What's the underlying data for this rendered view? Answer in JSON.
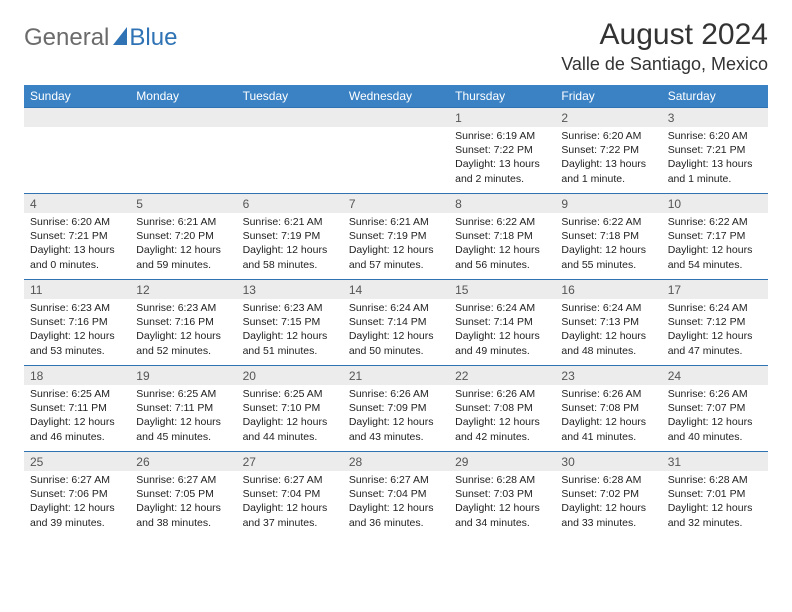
{
  "brand": {
    "part1": "General",
    "part2": "Blue"
  },
  "title": "August 2024",
  "location": "Valle de Santiago, Mexico",
  "colors": {
    "header_bg": "#3a82c4",
    "header_text": "#ffffff",
    "numrow_bg": "#ececec",
    "border": "#2f73b5",
    "text": "#222222"
  },
  "typography": {
    "body_fontsize": 10.5,
    "daynum_fontsize": 12,
    "title_fontsize": 30
  },
  "day_names": [
    "Sunday",
    "Monday",
    "Tuesday",
    "Wednesday",
    "Thursday",
    "Friday",
    "Saturday"
  ],
  "weeks": [
    [
      null,
      null,
      null,
      null,
      {
        "n": "1",
        "sr": "Sunrise: 6:19 AM",
        "ss": "Sunset: 7:22 PM",
        "dl": "Daylight: 13 hours and 2 minutes."
      },
      {
        "n": "2",
        "sr": "Sunrise: 6:20 AM",
        "ss": "Sunset: 7:22 PM",
        "dl": "Daylight: 13 hours and 1 minute."
      },
      {
        "n": "3",
        "sr": "Sunrise: 6:20 AM",
        "ss": "Sunset: 7:21 PM",
        "dl": "Daylight: 13 hours and 1 minute."
      }
    ],
    [
      {
        "n": "4",
        "sr": "Sunrise: 6:20 AM",
        "ss": "Sunset: 7:21 PM",
        "dl": "Daylight: 13 hours and 0 minutes."
      },
      {
        "n": "5",
        "sr": "Sunrise: 6:21 AM",
        "ss": "Sunset: 7:20 PM",
        "dl": "Daylight: 12 hours and 59 minutes."
      },
      {
        "n": "6",
        "sr": "Sunrise: 6:21 AM",
        "ss": "Sunset: 7:19 PM",
        "dl": "Daylight: 12 hours and 58 minutes."
      },
      {
        "n": "7",
        "sr": "Sunrise: 6:21 AM",
        "ss": "Sunset: 7:19 PM",
        "dl": "Daylight: 12 hours and 57 minutes."
      },
      {
        "n": "8",
        "sr": "Sunrise: 6:22 AM",
        "ss": "Sunset: 7:18 PM",
        "dl": "Daylight: 12 hours and 56 minutes."
      },
      {
        "n": "9",
        "sr": "Sunrise: 6:22 AM",
        "ss": "Sunset: 7:18 PM",
        "dl": "Daylight: 12 hours and 55 minutes."
      },
      {
        "n": "10",
        "sr": "Sunrise: 6:22 AM",
        "ss": "Sunset: 7:17 PM",
        "dl": "Daylight: 12 hours and 54 minutes."
      }
    ],
    [
      {
        "n": "11",
        "sr": "Sunrise: 6:23 AM",
        "ss": "Sunset: 7:16 PM",
        "dl": "Daylight: 12 hours and 53 minutes."
      },
      {
        "n": "12",
        "sr": "Sunrise: 6:23 AM",
        "ss": "Sunset: 7:16 PM",
        "dl": "Daylight: 12 hours and 52 minutes."
      },
      {
        "n": "13",
        "sr": "Sunrise: 6:23 AM",
        "ss": "Sunset: 7:15 PM",
        "dl": "Daylight: 12 hours and 51 minutes."
      },
      {
        "n": "14",
        "sr": "Sunrise: 6:24 AM",
        "ss": "Sunset: 7:14 PM",
        "dl": "Daylight: 12 hours and 50 minutes."
      },
      {
        "n": "15",
        "sr": "Sunrise: 6:24 AM",
        "ss": "Sunset: 7:14 PM",
        "dl": "Daylight: 12 hours and 49 minutes."
      },
      {
        "n": "16",
        "sr": "Sunrise: 6:24 AM",
        "ss": "Sunset: 7:13 PM",
        "dl": "Daylight: 12 hours and 48 minutes."
      },
      {
        "n": "17",
        "sr": "Sunrise: 6:24 AM",
        "ss": "Sunset: 7:12 PM",
        "dl": "Daylight: 12 hours and 47 minutes."
      }
    ],
    [
      {
        "n": "18",
        "sr": "Sunrise: 6:25 AM",
        "ss": "Sunset: 7:11 PM",
        "dl": "Daylight: 12 hours and 46 minutes."
      },
      {
        "n": "19",
        "sr": "Sunrise: 6:25 AM",
        "ss": "Sunset: 7:11 PM",
        "dl": "Daylight: 12 hours and 45 minutes."
      },
      {
        "n": "20",
        "sr": "Sunrise: 6:25 AM",
        "ss": "Sunset: 7:10 PM",
        "dl": "Daylight: 12 hours and 44 minutes."
      },
      {
        "n": "21",
        "sr": "Sunrise: 6:26 AM",
        "ss": "Sunset: 7:09 PM",
        "dl": "Daylight: 12 hours and 43 minutes."
      },
      {
        "n": "22",
        "sr": "Sunrise: 6:26 AM",
        "ss": "Sunset: 7:08 PM",
        "dl": "Daylight: 12 hours and 42 minutes."
      },
      {
        "n": "23",
        "sr": "Sunrise: 6:26 AM",
        "ss": "Sunset: 7:08 PM",
        "dl": "Daylight: 12 hours and 41 minutes."
      },
      {
        "n": "24",
        "sr": "Sunrise: 6:26 AM",
        "ss": "Sunset: 7:07 PM",
        "dl": "Daylight: 12 hours and 40 minutes."
      }
    ],
    [
      {
        "n": "25",
        "sr": "Sunrise: 6:27 AM",
        "ss": "Sunset: 7:06 PM",
        "dl": "Daylight: 12 hours and 39 minutes."
      },
      {
        "n": "26",
        "sr": "Sunrise: 6:27 AM",
        "ss": "Sunset: 7:05 PM",
        "dl": "Daylight: 12 hours and 38 minutes."
      },
      {
        "n": "27",
        "sr": "Sunrise: 6:27 AM",
        "ss": "Sunset: 7:04 PM",
        "dl": "Daylight: 12 hours and 37 minutes."
      },
      {
        "n": "28",
        "sr": "Sunrise: 6:27 AM",
        "ss": "Sunset: 7:04 PM",
        "dl": "Daylight: 12 hours and 36 minutes."
      },
      {
        "n": "29",
        "sr": "Sunrise: 6:28 AM",
        "ss": "Sunset: 7:03 PM",
        "dl": "Daylight: 12 hours and 34 minutes."
      },
      {
        "n": "30",
        "sr": "Sunrise: 6:28 AM",
        "ss": "Sunset: 7:02 PM",
        "dl": "Daylight: 12 hours and 33 minutes."
      },
      {
        "n": "31",
        "sr": "Sunrise: 6:28 AM",
        "ss": "Sunset: 7:01 PM",
        "dl": "Daylight: 12 hours and 32 minutes."
      }
    ]
  ]
}
